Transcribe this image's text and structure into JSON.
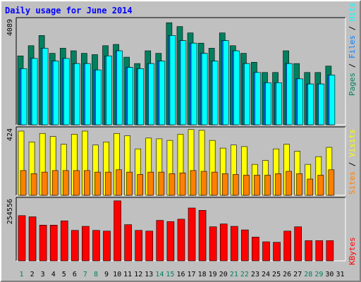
{
  "title": "Daily usage for June 2014",
  "colors": {
    "background": "#c0c0c0",
    "plot_background": "#c0c0c0",
    "title": "#0000ff",
    "pages": "#00805f",
    "files": "#0080ff",
    "hits": "#00ffff",
    "visits": "#ffff00",
    "sites": "#ff8000",
    "kbytes": "#ff0000",
    "weekend_day": "#00805f",
    "weekday": "#000000"
  },
  "chart_data": [
    {
      "type": "bar",
      "name": "hits-files-pages",
      "max_label": "4089",
      "ylim": [
        0,
        4089
      ],
      "legend": [
        "Pages",
        "Files",
        "Hits"
      ],
      "categories": [
        "1",
        "2",
        "3",
        "4",
        "5",
        "6",
        "7",
        "8",
        "9",
        "10",
        "11",
        "12",
        "13",
        "14",
        "15",
        "16",
        "17",
        "18",
        "19",
        "20",
        "21",
        "22",
        "23",
        "24",
        "25",
        "26",
        "27",
        "28",
        "29",
        "30",
        "31"
      ],
      "series": [
        {
          "name": "Pages",
          "values": [
            2700,
            3100,
            3500,
            2800,
            3000,
            2900,
            2800,
            2750,
            3100,
            3150,
            2650,
            2400,
            2900,
            2800,
            4000,
            3850,
            3600,
            3200,
            3000,
            3600,
            3100,
            2800,
            2450,
            2050,
            2050,
            2900,
            2400,
            2050,
            2050,
            2300,
            null
          ]
        },
        {
          "name": "Files",
          "values": [
            2200,
            2600,
            3000,
            2500,
            2600,
            2400,
            2400,
            2150,
            2700,
            2900,
            2250,
            2200,
            2400,
            2500,
            3500,
            3300,
            3200,
            2800,
            2500,
            3300,
            2900,
            2400,
            2050,
            1650,
            1650,
            2400,
            1800,
            1600,
            1600,
            1950,
            null
          ]
        },
        {
          "name": "Hits",
          "values": [
            2200,
            2600,
            3000,
            2500,
            2600,
            2400,
            2400,
            2150,
            2700,
            2900,
            2250,
            2200,
            2400,
            2500,
            3500,
            3300,
            3200,
            2800,
            2500,
            3300,
            2900,
            2400,
            2050,
            1650,
            1650,
            2400,
            1800,
            1600,
            1600,
            1950,
            null
          ]
        }
      ],
      "axis_label": "Pages / Files / Hits"
    },
    {
      "type": "bar",
      "name": "visits-sites",
      "max_label": "424",
      "ylim": [
        0,
        424
      ],
      "legend": [
        "Sites",
        "Visits"
      ],
      "categories": [
        "1",
        "2",
        "3",
        "4",
        "5",
        "6",
        "7",
        "8",
        "9",
        "10",
        "11",
        "12",
        "13",
        "14",
        "15",
        "16",
        "17",
        "18",
        "19",
        "20",
        "21",
        "22",
        "23",
        "24",
        "25",
        "26",
        "27",
        "28",
        "29",
        "30",
        "31"
      ],
      "series": [
        {
          "name": "Visits",
          "values": [
            415,
            345,
            400,
            380,
            330,
            395,
            415,
            325,
            345,
            400,
            385,
            300,
            370,
            365,
            355,
            395,
            425,
            420,
            355,
            305,
            325,
            315,
            200,
            225,
            300,
            330,
            285,
            200,
            250,
            310,
            null
          ]
        },
        {
          "name": "Sites",
          "values": [
            160,
            140,
            150,
            160,
            160,
            160,
            160,
            150,
            150,
            165,
            150,
            135,
            150,
            150,
            140,
            145,
            160,
            155,
            150,
            140,
            135,
            130,
            130,
            130,
            140,
            155,
            140,
            105,
            130,
            165,
            null
          ]
        }
      ],
      "axis_label": "Sites / Visits"
    },
    {
      "type": "bar",
      "name": "kbytes",
      "max_label": "254556",
      "ylim": [
        0,
        254556
      ],
      "legend": [
        "KBytes"
      ],
      "categories": [
        "1",
        "2",
        "3",
        "4",
        "5",
        "6",
        "7",
        "8",
        "9",
        "10",
        "11",
        "12",
        "13",
        "14",
        "15",
        "16",
        "17",
        "18",
        "19",
        "20",
        "21",
        "22",
        "23",
        "24",
        "25",
        "26",
        "27",
        "28",
        "29",
        "30",
        "31"
      ],
      "series": [
        {
          "name": "KBytes",
          "values": [
            190000,
            185000,
            150000,
            150000,
            168000,
            128000,
            145000,
            128000,
            125000,
            252000,
            152000,
            128000,
            125000,
            170000,
            165000,
            175000,
            222000,
            212000,
            143000,
            155000,
            145000,
            130000,
            100000,
            80000,
            78000,
            125000,
            143000,
            85000,
            85000,
            85000,
            null
          ]
        }
      ],
      "axis_label": "KBytes"
    }
  ],
  "x_labels": [
    "1",
    "2",
    "3",
    "4",
    "5",
    "6",
    "7",
    "8",
    "9",
    "10",
    "11",
    "12",
    "13",
    "14",
    "15",
    "16",
    "17",
    "18",
    "19",
    "20",
    "21",
    "22",
    "23",
    "24",
    "25",
    "26",
    "27",
    "28",
    "29",
    "30",
    "31"
  ],
  "weekend_days": [
    1,
    7,
    8,
    14,
    15,
    21,
    22,
    28,
    29
  ]
}
